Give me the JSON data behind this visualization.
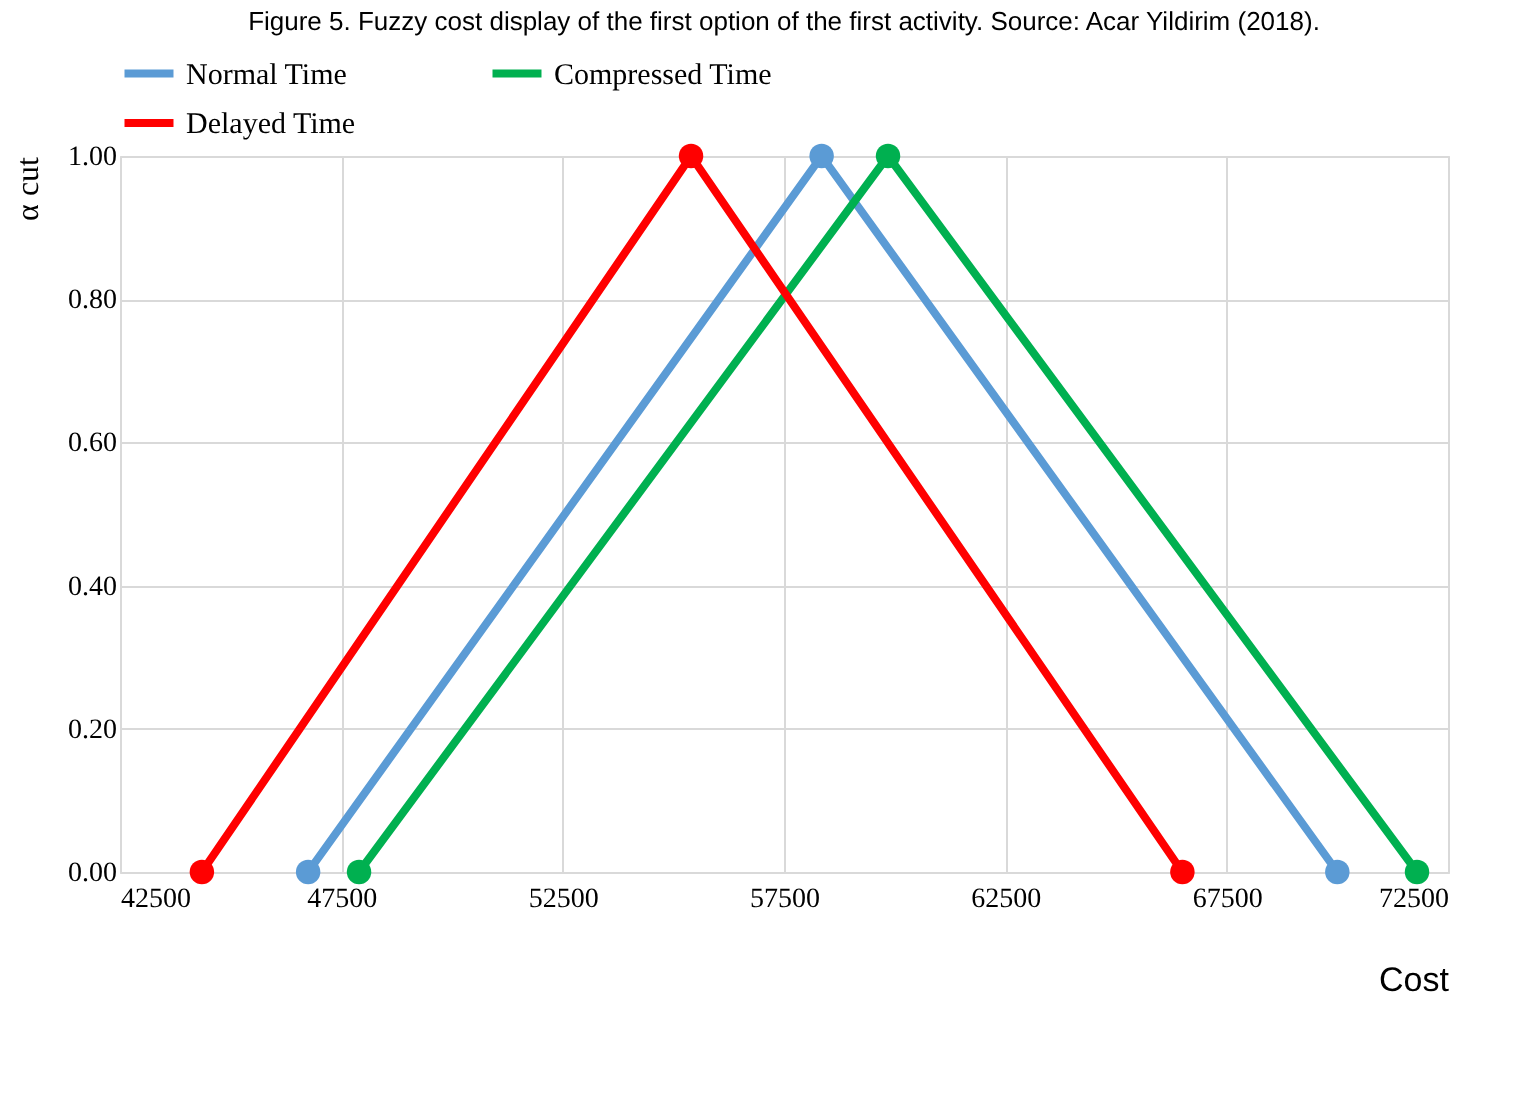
{
  "chart_data": {
    "type": "line",
    "title": "Figure 5. Fuzzy cost display of the first option of the first activity. Source: Acar Yildirim (2018).",
    "xlabel": "Cost",
    "ylabel": "α cut",
    "series": [
      {
        "name": "Normal Time",
        "color": "#5b9bd5",
        "x": [
          46750,
          58350,
          70000
        ],
        "values": [
          0,
          1,
          0
        ]
      },
      {
        "name": "Compressed Time",
        "color": "#00b050",
        "x": [
          47900,
          59850,
          71800
        ],
        "values": [
          0,
          1,
          0
        ]
      },
      {
        "name": "Delayed Time",
        "color": "#ff0000",
        "x": [
          44350,
          55400,
          66500
        ],
        "values": [
          0,
          1,
          0
        ]
      }
    ],
    "xlim": [
      42500,
      72500
    ],
    "xticks": [
      42500,
      47500,
      52500,
      57500,
      62500,
      67500,
      72500
    ],
    "ylim": [
      0,
      1
    ],
    "yticks": [
      {
        "value": 0,
        "label": "0.00"
      },
      {
        "value": 0.2,
        "label": "0.20"
      },
      {
        "value": 0.4,
        "label": "0.40"
      },
      {
        "value": 0.6,
        "label": "0.60"
      },
      {
        "value": 0.8,
        "label": "0.80"
      },
      {
        "value": 1,
        "label": "1.00"
      }
    ],
    "grid": true,
    "legend": "top",
    "marker": "circle",
    "line_style": "solid"
  }
}
